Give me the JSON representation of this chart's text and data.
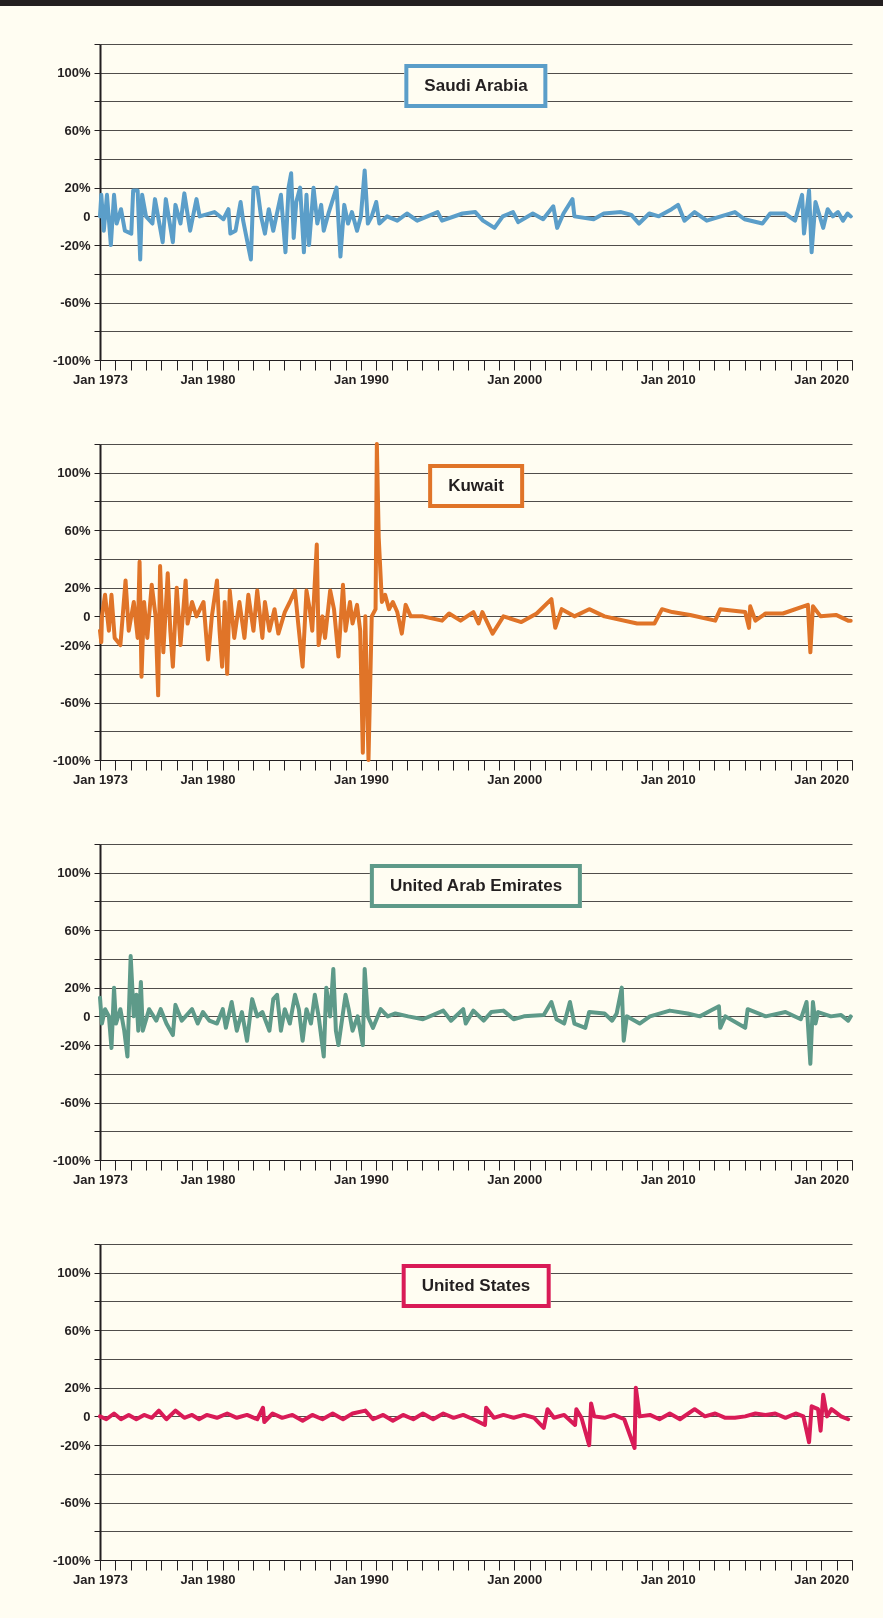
{
  "chart_data": [
    {
      "type": "line",
      "title": "Saudi Arabia",
      "grid": "y",
      "xlim": [
        "1973-01",
        "2022-01"
      ],
      "ylim": [
        -100,
        120
      ],
      "xticks": [
        {
          "value": "1973-01",
          "label": "Jan 1973"
        },
        {
          "value": "1974-01",
          "label": null
        },
        {
          "value": "1975-01",
          "label": null
        },
        {
          "value": "1976-01",
          "label": null
        },
        {
          "value": "1977-01",
          "label": null
        },
        {
          "value": "1978-01",
          "label": null
        },
        {
          "value": "1979-01",
          "label": null
        },
        {
          "value": "1980-01",
          "label": "Jan 1980"
        },
        {
          "value": "1981-01",
          "label": null
        },
        {
          "value": "1982-01",
          "label": null
        },
        {
          "value": "1983-01",
          "label": null
        },
        {
          "value": "1984-01",
          "label": null
        },
        {
          "value": "1985-01",
          "label": null
        },
        {
          "value": "1986-01",
          "label": null
        },
        {
          "value": "1987-01",
          "label": null
        },
        {
          "value": "1988-01",
          "label": null
        },
        {
          "value": "1989-01",
          "label": null
        },
        {
          "value": "1990-01",
          "label": "Jan 1990"
        },
        {
          "value": "1991-01",
          "label": null
        },
        {
          "value": "1992-01",
          "label": null
        },
        {
          "value": "1993-01",
          "label": null
        },
        {
          "value": "1994-01",
          "label": null
        },
        {
          "value": "1995-01",
          "label": null
        },
        {
          "value": "1996-01",
          "label": null
        },
        {
          "value": "1997-01",
          "label": null
        },
        {
          "value": "1998-01",
          "label": null
        },
        {
          "value": "1999-01",
          "label": null
        },
        {
          "value": "2000-01",
          "label": "Jan 2000"
        },
        {
          "value": "2001-01",
          "label": null
        },
        {
          "value": "2002-01",
          "label": null
        },
        {
          "value": "2003-01",
          "label": null
        },
        {
          "value": "2004-01",
          "label": null
        },
        {
          "value": "2005-01",
          "label": null
        },
        {
          "value": "2006-01",
          "label": null
        },
        {
          "value": "2007-01",
          "label": null
        },
        {
          "value": "2008-01",
          "label": null
        },
        {
          "value": "2009-01",
          "label": null
        },
        {
          "value": "2010-01",
          "label": "Jan 2010"
        },
        {
          "value": "2011-01",
          "label": null
        },
        {
          "value": "2012-01",
          "label": null
        },
        {
          "value": "2013-01",
          "label": null
        },
        {
          "value": "2014-01",
          "label": null
        },
        {
          "value": "2015-01",
          "label": null
        },
        {
          "value": "2016-01",
          "label": null
        },
        {
          "value": "2017-01",
          "label": null
        },
        {
          "value": "2018-01",
          "label": null
        },
        {
          "value": "2019-01",
          "label": null
        },
        {
          "value": "2020-01",
          "label": "Jan 2020"
        },
        {
          "value": "2021-01",
          "label": null
        },
        {
          "value": "2022-01",
          "label": null
        }
      ],
      "yticks": [
        {
          "value": 120,
          "label": null
        },
        {
          "value": 100,
          "label": "100%"
        },
        {
          "value": 80,
          "label": null
        },
        {
          "value": 60,
          "label": "60%"
        },
        {
          "value": 40,
          "label": null
        },
        {
          "value": 20,
          "label": "20%"
        },
        {
          "value": 0,
          "label": "0"
        },
        {
          "value": -20,
          "label": "-20%"
        },
        {
          "value": -40,
          "label": null
        },
        {
          "value": -60,
          "label": "-60%"
        },
        {
          "value": -80,
          "label": null
        },
        {
          "value": -100,
          "label": "-100%"
        }
      ],
      "x": [
        "1973-01-01",
        "1973-02-01",
        "1973-04-01",
        "1973-06-16",
        "1973-09-16",
        "1973-12-01",
        "1974-02-01",
        "1974-05-16",
        "1974-08-16",
        "1975-01-16",
        "1975-03-01",
        "1975-06-16",
        "1975-08-16",
        "1975-10-01",
        "1976-01-01",
        "1976-06-01",
        "1976-08-01",
        "1977-02-01",
        "1977-04-16",
        "1977-10-01",
        "1977-12-01",
        "1978-04-01",
        "1978-07-01",
        "1978-11-16",
        "1979-04-16",
        "1979-07-01",
        "1980-06-16",
        "1981-01-16",
        "1981-05-16",
        "1981-07-01",
        "1981-11-01",
        "1982-03-01",
        "1982-05-01",
        "1982-11-01",
        "1983-01-01",
        "1983-04-01",
        "1983-07-01",
        "1983-10-01",
        "1984-01-01",
        "1984-04-16",
        "1984-10-16",
        "1985-02-01",
        "1985-04-16",
        "1985-06-16",
        "1985-08-16",
        "1985-10-16",
        "1986-01-16",
        "1986-04-16",
        "1986-06-16",
        "1986-08-16",
        "1986-12-01",
        "1987-03-01",
        "1987-06-01",
        "1987-08-01",
        "1987-12-01",
        "1988-06-01",
        "1988-09-01",
        "1988-12-01",
        "1989-03-01",
        "1989-06-01",
        "1989-10-01",
        "1990-01-01",
        "1990-04-01",
        "1990-06-16",
        "1990-09-16",
        "1991-01-01",
        "1991-03-16",
        "1991-09-16",
        "1992-05-16",
        "1993-01-01",
        "1993-09-01",
        "1995-01-01",
        "1995-04-16",
        "1996-08-16",
        "1997-06-16",
        "1997-12-16",
        "1998-09-16",
        "1999-04-01",
        "1999-12-01",
        "2000-04-01",
        "2001-03-16",
        "2001-11-16",
        "2002-07-16",
        "2002-10-16",
        "2003-03-16",
        "2003-10-16",
        "2003-12-01",
        "2005-03-01",
        "2005-11-01",
        "2006-12-16",
        "2007-08-16",
        "2008-02-16",
        "2008-10-16",
        "2009-06-01",
        "2010-04-01",
        "2010-09-01",
        "2011-02-01",
        "2011-10-01",
        "2012-07-16",
        "2014-05-16",
        "2015-01-01",
        "2016-03-01",
        "2016-09-01",
        "2017-08-16",
        "2018-04-16",
        "2018-10-01",
        "2018-11-16",
        "2019-03-16",
        "2019-05-16",
        "2019-08-16",
        "2020-02-16",
        "2020-06-01",
        "2020-10-01",
        "2021-02-01",
        "2021-06-01",
        "2021-09-16",
        "2021-12-01"
      ],
      "series": [
        {
          "color": "#5b9ec9",
          "values": [
            0,
            15,
            -10,
            15,
            -20,
            15,
            -5,
            5,
            -10,
            -12,
            18,
            18,
            -30,
            15,
            0,
            -5,
            12,
            -18,
            12,
            -18,
            8,
            -5,
            16,
            -10,
            12,
            0,
            3,
            -2,
            5,
            -12,
            -10,
            10,
            -3,
            -30,
            20,
            20,
            0,
            -12,
            5,
            -10,
            15,
            -25,
            20,
            30,
            -15,
            10,
            20,
            -25,
            15,
            -20,
            20,
            -5,
            8,
            -10,
            3,
            20,
            -28,
            8,
            -5,
            3,
            -10,
            0,
            32,
            -5,
            0,
            10,
            -5,
            0,
            -3,
            2,
            -3,
            3,
            -3,
            2,
            3,
            -3,
            -8,
            0,
            3,
            -4,
            2,
            -2,
            7,
            -8,
            2,
            12,
            0,
            -2,
            2,
            3,
            1,
            -5,
            2,
            0,
            5,
            8,
            -3,
            3,
            -3,
            3,
            -2,
            -5,
            2,
            2,
            -3,
            15,
            -12,
            18,
            -25,
            10,
            -8,
            5,
            0,
            3,
            -3,
            2,
            0
          ]
        }
      ]
    },
    {
      "type": "line",
      "title": "Kuwait",
      "grid": "y",
      "xlim": [
        "1973-01",
        "2022-01"
      ],
      "ylim": [
        -100,
        120
      ],
      "xticks": [
        {
          "value": "1973-01",
          "label": "Jan 1973"
        },
        {
          "value": "1974-01",
          "label": null
        },
        {
          "value": "1975-01",
          "label": null
        },
        {
          "value": "1976-01",
          "label": null
        },
        {
          "value": "1977-01",
          "label": null
        },
        {
          "value": "1978-01",
          "label": null
        },
        {
          "value": "1979-01",
          "label": null
        },
        {
          "value": "1980-01",
          "label": "Jan 1980"
        },
        {
          "value": "1981-01",
          "label": null
        },
        {
          "value": "1982-01",
          "label": null
        },
        {
          "value": "1983-01",
          "label": null
        },
        {
          "value": "1984-01",
          "label": null
        },
        {
          "value": "1985-01",
          "label": null
        },
        {
          "value": "1986-01",
          "label": null
        },
        {
          "value": "1987-01",
          "label": null
        },
        {
          "value": "1988-01",
          "label": null
        },
        {
          "value": "1989-01",
          "label": null
        },
        {
          "value": "1990-01",
          "label": "Jan 1990"
        },
        {
          "value": "1991-01",
          "label": null
        },
        {
          "value": "1992-01",
          "label": null
        },
        {
          "value": "1993-01",
          "label": null
        },
        {
          "value": "1994-01",
          "label": null
        },
        {
          "value": "1995-01",
          "label": null
        },
        {
          "value": "1996-01",
          "label": null
        },
        {
          "value": "1997-01",
          "label": null
        },
        {
          "value": "1998-01",
          "label": null
        },
        {
          "value": "1999-01",
          "label": null
        },
        {
          "value": "2000-01",
          "label": "Jan 2000"
        },
        {
          "value": "2001-01",
          "label": null
        },
        {
          "value": "2002-01",
          "label": null
        },
        {
          "value": "2003-01",
          "label": null
        },
        {
          "value": "2004-01",
          "label": null
        },
        {
          "value": "2005-01",
          "label": null
        },
        {
          "value": "2006-01",
          "label": null
        },
        {
          "value": "2007-01",
          "label": null
        },
        {
          "value": "2008-01",
          "label": null
        },
        {
          "value": "2009-01",
          "label": null
        },
        {
          "value": "2010-01",
          "label": "Jan 2010"
        },
        {
          "value": "2011-01",
          "label": null
        },
        {
          "value": "2012-01",
          "label": null
        },
        {
          "value": "2013-01",
          "label": null
        },
        {
          "value": "2014-01",
          "label": null
        },
        {
          "value": "2015-01",
          "label": null
        },
        {
          "value": "2016-01",
          "label": null
        },
        {
          "value": "2017-01",
          "label": null
        },
        {
          "value": "2018-01",
          "label": null
        },
        {
          "value": "2019-01",
          "label": null
        },
        {
          "value": "2020-01",
          "label": "Jan 2020"
        },
        {
          "value": "2021-01",
          "label": null
        },
        {
          "value": "2022-01",
          "label": null
        }
      ],
      "yticks": [
        {
          "value": 120,
          "label": null
        },
        {
          "value": 100,
          "label": "100%"
        },
        {
          "value": 80,
          "label": null
        },
        {
          "value": 60,
          "label": "60%"
        },
        {
          "value": 40,
          "label": null
        },
        {
          "value": 20,
          "label": "20%"
        },
        {
          "value": 0,
          "label": "0"
        },
        {
          "value": -20,
          "label": "-20%"
        },
        {
          "value": -40,
          "label": null
        },
        {
          "value": -60,
          "label": "-60%"
        },
        {
          "value": -80,
          "label": null
        },
        {
          "value": -100,
          "label": "-100%"
        }
      ],
      "x": [
        "1973-01-01",
        "1973-02-01",
        "1973-02-16",
        "1973-05-01",
        "1973-08-01",
        "1973-10-01",
        "1973-12-16",
        "1974-05-01",
        "1974-09-01",
        "1974-11-16",
        "1975-03-16",
        "1975-06-16",
        "1975-08-01",
        "1975-09-16",
        "1975-11-16",
        "1976-02-01",
        "1976-05-16",
        "1976-08-16",
        "1976-10-16",
        "1976-12-01",
        "1977-02-16",
        "1977-06-01",
        "1977-08-01",
        "1977-10-01",
        "1978-01-01",
        "1978-04-01",
        "1978-08-01",
        "1978-09-16",
        "1979-01-01",
        "1979-04-16",
        "1979-10-01",
        "1980-01-16",
        "1980-04-16",
        "1980-08-16",
        "1980-10-16",
        "1980-12-16",
        "1981-02-16",
        "1981-04-16",
        "1981-06-16",
        "1981-10-01",
        "1982-02-01",
        "1982-06-01",
        "1982-09-01",
        "1983-01-01",
        "1983-04-01",
        "1983-08-01",
        "1983-10-01",
        "1984-01-16",
        "1984-05-16",
        "1984-08-16",
        "1985-01-16",
        "1985-05-16",
        "1985-09-16",
        "1985-12-01",
        "1986-03-16",
        "1986-06-16",
        "1986-09-01",
        "1986-11-01",
        "1987-02-16",
        "1987-04-01",
        "1987-07-01",
        "1987-09-01",
        "1988-01-01",
        "1988-04-01",
        "1988-07-16",
        "1988-11-01",
        "1989-01-01",
        "1989-04-16",
        "1989-06-16",
        "1989-10-01",
        "1989-12-16",
        "1990-02-16",
        "1990-04-16",
        "1990-07-01",
        "1990-09-16",
        "1990-12-16",
        "1991-01-16",
        "1991-03-01",
        "1991-05-16",
        "1991-08-01",
        "1991-11-01",
        "1992-02-01",
        "1992-05-16",
        "1992-09-01",
        "1992-12-01",
        "1993-04-01",
        "1994-01-16",
        "1995-04-16",
        "1995-10-01",
        "1996-07-01",
        "1997-05-01",
        "1997-09-01",
        "1997-12-01",
        "1998-08-01",
        "1999-04-16",
        "2000-06-16",
        "2001-06-16",
        "2002-06-01",
        "2002-09-01",
        "2003-02-01",
        "2003-12-01",
        "2004-11-16",
        "2005-11-16",
        "2008-01-01",
        "2009-02-16",
        "2009-08-16",
        "2010-04-16",
        "2011-06-16",
        "2013-02-01",
        "2013-06-01",
        "2015-01-16",
        "2015-04-16",
        "2015-05-16",
        "2015-09-16",
        "2016-05-16",
        "2017-07-01",
        "2019-02-16",
        "2019-04-16",
        "2019-06-16",
        "2019-12-16",
        "2020-12-16",
        "2021-10-01",
        "2021-12-01"
      ],
      "series": [
        {
          "color": "#e07428",
          "values": [
            -10,
            -18,
            0,
            15,
            -10,
            15,
            -15,
            -20,
            25,
            -10,
            10,
            -15,
            38,
            -42,
            10,
            -15,
            22,
            0,
            -55,
            35,
            -25,
            30,
            -10,
            -35,
            20,
            -20,
            25,
            -5,
            10,
            0,
            10,
            -30,
            0,
            25,
            -10,
            -35,
            10,
            -40,
            18,
            -15,
            10,
            -15,
            15,
            -10,
            18,
            -15,
            10,
            -10,
            5,
            -12,
            3,
            10,
            18,
            -5,
            -35,
            18,
            5,
            -10,
            50,
            -20,
            0,
            -15,
            18,
            5,
            -28,
            22,
            -10,
            10,
            -5,
            8,
            -10,
            -95,
            0,
            -100,
            0,
            5,
            120,
            55,
            10,
            15,
            5,
            10,
            3,
            -12,
            8,
            0,
            0,
            -3,
            2,
            -3,
            3,
            -5,
            3,
            -12,
            0,
            -4,
            2,
            12,
            -8,
            5,
            0,
            5,
            0,
            -5,
            -5,
            5,
            3,
            1,
            -3,
            5,
            3,
            -8,
            7,
            -3,
            2,
            2,
            8,
            -25,
            7,
            0,
            1,
            -3,
            -3
          ]
        }
      ]
    },
    {
      "type": "line",
      "title": "United Arab Emirates",
      "grid": "y",
      "xlim": [
        "1973-01",
        "2022-01"
      ],
      "ylim": [
        -100,
        120
      ],
      "xticks": [
        {
          "value": "1973-01",
          "label": "Jan 1973"
        },
        {
          "value": "1974-01",
          "label": null
        },
        {
          "value": "1975-01",
          "label": null
        },
        {
          "value": "1976-01",
          "label": null
        },
        {
          "value": "1977-01",
          "label": null
        },
        {
          "value": "1978-01",
          "label": null
        },
        {
          "value": "1979-01",
          "label": null
        },
        {
          "value": "1980-01",
          "label": "Jan 1980"
        },
        {
          "value": "1981-01",
          "label": null
        },
        {
          "value": "1982-01",
          "label": null
        },
        {
          "value": "1983-01",
          "label": null
        },
        {
          "value": "1984-01",
          "label": null
        },
        {
          "value": "1985-01",
          "label": null
        },
        {
          "value": "1986-01",
          "label": null
        },
        {
          "value": "1987-01",
          "label": null
        },
        {
          "value": "1988-01",
          "label": null
        },
        {
          "value": "1989-01",
          "label": null
        },
        {
          "value": "1990-01",
          "label": "Jan 1990"
        },
        {
          "value": "1991-01",
          "label": null
        },
        {
          "value": "1992-01",
          "label": null
        },
        {
          "value": "1993-01",
          "label": null
        },
        {
          "value": "1994-01",
          "label": null
        },
        {
          "value": "1995-01",
          "label": null
        },
        {
          "value": "1996-01",
          "label": null
        },
        {
          "value": "1997-01",
          "label": null
        },
        {
          "value": "1998-01",
          "label": null
        },
        {
          "value": "1999-01",
          "label": null
        },
        {
          "value": "2000-01",
          "label": "Jan 2000"
        },
        {
          "value": "2001-01",
          "label": null
        },
        {
          "value": "2002-01",
          "label": null
        },
        {
          "value": "2003-01",
          "label": null
        },
        {
          "value": "2004-01",
          "label": null
        },
        {
          "value": "2005-01",
          "label": null
        },
        {
          "value": "2006-01",
          "label": null
        },
        {
          "value": "2007-01",
          "label": null
        },
        {
          "value": "2008-01",
          "label": null
        },
        {
          "value": "2009-01",
          "label": null
        },
        {
          "value": "2010-01",
          "label": "Jan 2010"
        },
        {
          "value": "2011-01",
          "label": null
        },
        {
          "value": "2012-01",
          "label": null
        },
        {
          "value": "2013-01",
          "label": null
        },
        {
          "value": "2014-01",
          "label": null
        },
        {
          "value": "2015-01",
          "label": null
        },
        {
          "value": "2016-01",
          "label": null
        },
        {
          "value": "2017-01",
          "label": null
        },
        {
          "value": "2018-01",
          "label": null
        },
        {
          "value": "2019-01",
          "label": null
        },
        {
          "value": "2020-01",
          "label": "Jan 2020"
        },
        {
          "value": "2021-01",
          "label": null
        },
        {
          "value": "2022-01",
          "label": null
        }
      ],
      "yticks": [
        {
          "value": 120,
          "label": null
        },
        {
          "value": 100,
          "label": "100%"
        },
        {
          "value": 80,
          "label": null
        },
        {
          "value": 60,
          "label": "60%"
        },
        {
          "value": 40,
          "label": null
        },
        {
          "value": 20,
          "label": "20%"
        },
        {
          "value": 0,
          "label": "0"
        },
        {
          "value": -20,
          "label": "-20%"
        },
        {
          "value": -40,
          "label": null
        },
        {
          "value": -60,
          "label": "-60%"
        },
        {
          "value": -80,
          "label": null
        },
        {
          "value": -100,
          "label": "-100%"
        }
      ],
      "x": [
        "1973-01-01",
        "1973-02-16",
        "1973-05-01",
        "1973-08-01",
        "1973-10-01",
        "1973-12-01",
        "1974-01-16",
        "1974-05-01",
        "1974-08-01",
        "1974-10-16",
        "1975-01-01",
        "1975-03-16",
        "1975-05-16",
        "1975-07-01",
        "1975-09-01",
        "1975-10-16",
        "1976-03-16",
        "1976-09-01",
        "1976-12-16",
        "1977-05-01",
        "1977-10-01",
        "1977-12-01",
        "1978-05-01",
        "1979-01-01",
        "1979-05-16",
        "1979-09-16",
        "1980-02-16",
        "1980-08-16",
        "1981-01-01",
        "1981-03-16",
        "1981-08-01",
        "1981-12-01",
        "1982-04-01",
        "1982-08-01",
        "1982-12-01",
        "1983-04-01",
        "1983-08-01",
        "1984-01-16",
        "1984-04-16",
        "1984-07-16",
        "1984-10-16",
        "1985-01-16",
        "1985-05-16",
        "1985-09-16",
        "1985-12-16",
        "1986-03-16",
        "1986-06-16",
        "1986-10-01",
        "1987-01-01",
        "1987-04-01",
        "1987-08-01",
        "1987-10-01",
        "1988-01-01",
        "1988-03-16",
        "1988-05-16",
        "1988-07-16",
        "1989-01-01",
        "1989-03-16",
        "1989-06-16",
        "1989-10-16",
        "1990-02-16",
        "1990-04-01",
        "1990-06-16",
        "1990-10-16",
        "1991-04-16",
        "1991-10-01",
        "1992-04-01",
        "1993-02-01",
        "1994-01-16",
        "1995-05-16",
        "1995-11-16",
        "1996-09-01",
        "1996-11-01",
        "1997-05-01",
        "1998-01-01",
        "1998-07-01",
        "1999-04-16",
        "1999-12-16",
        "2000-08-16",
        "2001-12-01",
        "2002-06-01",
        "2002-10-01",
        "2003-04-01",
        "2003-08-16",
        "2003-12-01",
        "2004-08-16",
        "2004-11-16",
        "2005-11-16",
        "2006-05-16",
        "2006-09-01",
        "2007-01-01",
        "2007-02-16",
        "2007-05-01",
        "2008-03-01",
        "2008-11-01",
        "2010-02-16",
        "2011-04-16",
        "2012-02-01",
        "2013-05-01",
        "2013-06-01",
        "2013-10-01",
        "2015-01-16",
        "2015-03-16",
        "2016-05-16",
        "2017-09-01",
        "2018-09-01",
        "2019-01-16",
        "2019-04-16",
        "2019-06-16",
        "2019-08-16",
        "2019-10-16",
        "2020-08-16",
        "2021-04-16",
        "2021-10-01",
        "2021-12-01"
      ],
      "series": [
        {
          "color": "#5e9a89",
          "values": [
            13,
            -5,
            5,
            0,
            -22,
            20,
            -5,
            5,
            -10,
            -28,
            42,
            0,
            15,
            -10,
            24,
            -10,
            5,
            -3,
            5,
            -5,
            -13,
            8,
            -3,
            5,
            -5,
            3,
            -3,
            -5,
            5,
            -8,
            10,
            -10,
            3,
            -17,
            12,
            0,
            3,
            -10,
            12,
            15,
            -10,
            5,
            -5,
            15,
            5,
            -17,
            5,
            -5,
            15,
            0,
            -28,
            20,
            0,
            33,
            -10,
            -20,
            15,
            5,
            -10,
            0,
            -20,
            33,
            0,
            -8,
            5,
            0,
            2,
            0,
            -2,
            4,
            -3,
            5,
            -5,
            4,
            -3,
            3,
            4,
            -2,
            0,
            1,
            10,
            -2,
            -5,
            10,
            -5,
            -8,
            3,
            2,
            -3,
            2,
            20,
            -17,
            0,
            -5,
            0,
            4,
            2,
            0,
            7,
            -8,
            0,
            -8,
            5,
            0,
            3,
            -2,
            10,
            -33,
            10,
            -5,
            3,
            0,
            1,
            -3,
            0
          ]
        }
      ]
    },
    {
      "type": "line",
      "title": "United States",
      "grid": "y",
      "xlim": [
        "1973-01",
        "2022-01"
      ],
      "ylim": [
        -100,
        120
      ],
      "xticks": [
        {
          "value": "1973-01",
          "label": "Jan 1973"
        },
        {
          "value": "1974-01",
          "label": null
        },
        {
          "value": "1975-01",
          "label": null
        },
        {
          "value": "1976-01",
          "label": null
        },
        {
          "value": "1977-01",
          "label": null
        },
        {
          "value": "1978-01",
          "label": null
        },
        {
          "value": "1979-01",
          "label": null
        },
        {
          "value": "1980-01",
          "label": "Jan 1980"
        },
        {
          "value": "1981-01",
          "label": null
        },
        {
          "value": "1982-01",
          "label": null
        },
        {
          "value": "1983-01",
          "label": null
        },
        {
          "value": "1984-01",
          "label": null
        },
        {
          "value": "1985-01",
          "label": null
        },
        {
          "value": "1986-01",
          "label": null
        },
        {
          "value": "1987-01",
          "label": null
        },
        {
          "value": "1988-01",
          "label": null
        },
        {
          "value": "1989-01",
          "label": null
        },
        {
          "value": "1990-01",
          "label": "Jan 1990"
        },
        {
          "value": "1991-01",
          "label": null
        },
        {
          "value": "1992-01",
          "label": null
        },
        {
          "value": "1993-01",
          "label": null
        },
        {
          "value": "1994-01",
          "label": null
        },
        {
          "value": "1995-01",
          "label": null
        },
        {
          "value": "1996-01",
          "label": null
        },
        {
          "value": "1997-01",
          "label": null
        },
        {
          "value": "1998-01",
          "label": null
        },
        {
          "value": "1999-01",
          "label": null
        },
        {
          "value": "2000-01",
          "label": "Jan 2000"
        },
        {
          "value": "2001-01",
          "label": null
        },
        {
          "value": "2002-01",
          "label": null
        },
        {
          "value": "2003-01",
          "label": null
        },
        {
          "value": "2004-01",
          "label": null
        },
        {
          "value": "2005-01",
          "label": null
        },
        {
          "value": "2006-01",
          "label": null
        },
        {
          "value": "2007-01",
          "label": null
        },
        {
          "value": "2008-01",
          "label": null
        },
        {
          "value": "2009-01",
          "label": null
        },
        {
          "value": "2010-01",
          "label": "Jan 2010"
        },
        {
          "value": "2011-01",
          "label": null
        },
        {
          "value": "2012-01",
          "label": null
        },
        {
          "value": "2013-01",
          "label": null
        },
        {
          "value": "2014-01",
          "label": null
        },
        {
          "value": "2015-01",
          "label": null
        },
        {
          "value": "2016-01",
          "label": null
        },
        {
          "value": "2017-01",
          "label": null
        },
        {
          "value": "2018-01",
          "label": null
        },
        {
          "value": "2019-01",
          "label": null
        },
        {
          "value": "2020-01",
          "label": "Jan 2020"
        },
        {
          "value": "2021-01",
          "label": null
        },
        {
          "value": "2022-01",
          "label": null
        }
      ],
      "yticks": [
        {
          "value": 120,
          "label": null
        },
        {
          "value": 100,
          "label": "100%"
        },
        {
          "value": 80,
          "label": null
        },
        {
          "value": 60,
          "label": "60%"
        },
        {
          "value": 40,
          "label": null
        },
        {
          "value": 20,
          "label": "20%"
        },
        {
          "value": 0,
          "label": "0"
        },
        {
          "value": -20,
          "label": "-20%"
        },
        {
          "value": -40,
          "label": null
        },
        {
          "value": -60,
          "label": "-60%"
        },
        {
          "value": -80,
          "label": null
        },
        {
          "value": -100,
          "label": "-100%"
        }
      ],
      "x": [
        "1973-01-01",
        "1973-06-01",
        "1973-12-01",
        "1974-05-16",
        "1974-11-16",
        "1975-05-16",
        "1975-11-16",
        "1976-05-16",
        "1976-11-01",
        "1977-05-01",
        "1977-12-01",
        "1978-07-01",
        "1979-01-01",
        "1979-06-16",
        "1979-12-16",
        "1980-08-16",
        "1981-04-16",
        "1981-12-01",
        "1982-08-01",
        "1983-04-01",
        "1983-08-16",
        "1983-09-16",
        "1984-04-01",
        "1984-11-16",
        "1985-07-16",
        "1986-03-16",
        "1986-11-01",
        "1987-07-01",
        "1988-03-01",
        "1988-11-01",
        "1989-06-16",
        "1990-04-16",
        "1990-10-16",
        "1991-06-16",
        "1992-02-01",
        "1992-10-01",
        "1993-06-01",
        "1994-01-16",
        "1994-09-16",
        "1995-05-16",
        "1996-01-16",
        "1996-09-01",
        "1997-05-01",
        "1998-02-01",
        "1998-03-01",
        "1998-09-01",
        "1999-04-16",
        "1999-12-16",
        "2000-08-16",
        "2001-04-16",
        "2001-12-01",
        "2002-03-01",
        "2002-08-01",
        "2003-04-01",
        "2003-12-16",
        "2004-01-16",
        "2004-05-16",
        "2004-11-16",
        "2005-01-01",
        "2005-03-16",
        "2005-11-16",
        "2006-07-01",
        "2007-03-01",
        "2007-11-01",
        "2007-12-01",
        "2008-03-01",
        "2008-11-01",
        "2009-06-16",
        "2010-02-16",
        "2010-10-16",
        "2011-10-01",
        "2012-06-01",
        "2013-02-01",
        "2013-10-01",
        "2014-05-16",
        "2015-01-16",
        "2015-09-16",
        "2016-05-16",
        "2017-01-01",
        "2017-09-01",
        "2018-05-01",
        "2018-11-01",
        "2019-03-16",
        "2019-05-16",
        "2019-10-16",
        "2019-12-16",
        "2020-02-16",
        "2020-05-16",
        "2020-09-01",
        "2021-04-16",
        "2021-10-01"
      ],
      "series": [
        {
          "color": "#d91b57",
          "values": [
            0,
            -2,
            2,
            -2,
            1,
            -2,
            1,
            -1,
            4,
            -2,
            4,
            -1,
            1,
            -2,
            1,
            -1,
            2,
            -1,
            1,
            -2,
            6,
            -4,
            2,
            -1,
            1,
            -3,
            1,
            -2,
            2,
            -2,
            2,
            4,
            -2,
            1,
            -3,
            1,
            -2,
            2,
            -2,
            2,
            -1,
            1,
            -2,
            -6,
            6,
            -1,
            1,
            -1,
            1,
            -1,
            -8,
            5,
            -1,
            1,
            -6,
            5,
            -1,
            -20,
            9,
            0,
            -1,
            1,
            -2,
            -22,
            20,
            0,
            1,
            -2,
            2,
            -2,
            5,
            0,
            2,
            -1,
            -1,
            0,
            2,
            1,
            2,
            -1,
            2,
            0,
            -18,
            7,
            5,
            -10,
            15,
            0,
            5,
            0,
            -2
          ]
        }
      ]
    }
  ]
}
